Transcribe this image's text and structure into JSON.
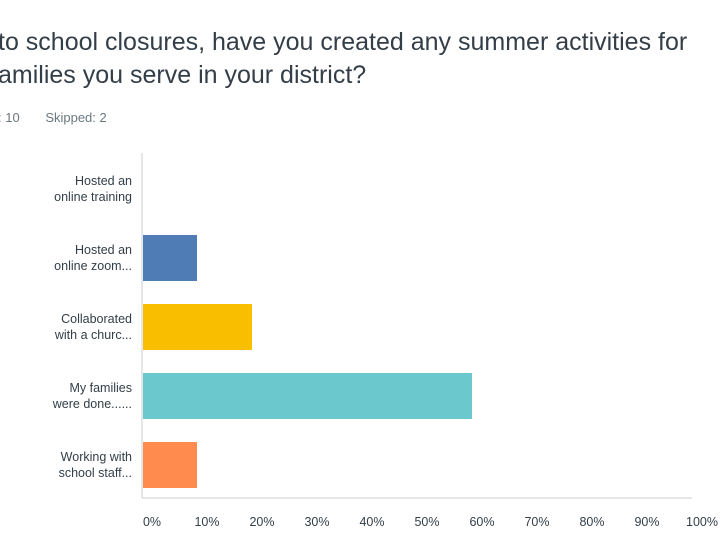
{
  "question": {
    "line1": "to school closures, have you created any summer activities for",
    "line2": "amilies you serve in your district?"
  },
  "stats": {
    "answered": ": 10",
    "skipped": "Skipped: 2"
  },
  "chart_data": {
    "type": "bar",
    "orientation": "horizontal",
    "categories": [
      [
        "Hosted an",
        "online training"
      ],
      [
        "Hosted an",
        "online zoom..."
      ],
      [
        "Collaborated",
        "with a churc..."
      ],
      [
        "My families",
        "were done......"
      ],
      [
        "Working with",
        "school staff..."
      ]
    ],
    "values": [
      0,
      10,
      20,
      60,
      10
    ],
    "colors": [
      "#6bc8cd",
      "#507cb6",
      "#f9be00",
      "#6bc8cd",
      "#ff8b4f"
    ],
    "xlim": [
      0,
      100
    ],
    "xticks": [
      "0%",
      "10%",
      "20%",
      "30%",
      "40%",
      "50%",
      "60%",
      "70%",
      "80%",
      "90%",
      "100%"
    ],
    "grid": false
  }
}
